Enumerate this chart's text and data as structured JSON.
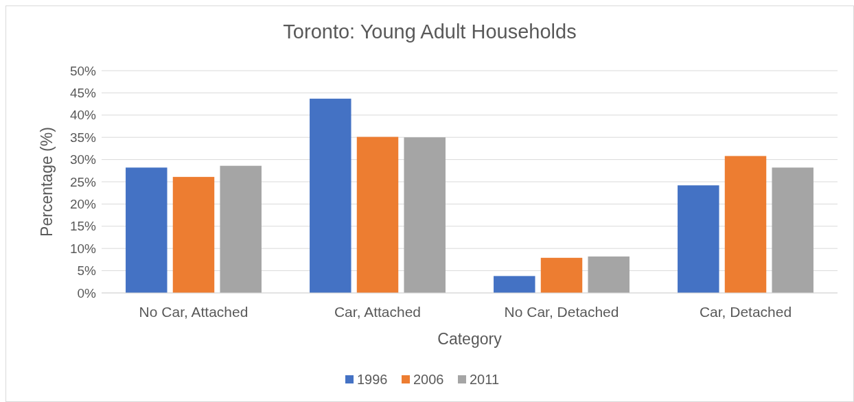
{
  "chart_data": {
    "type": "bar",
    "title": "Toronto: Young Adult Households",
    "xlabel": "Category",
    "ylabel": "Percentage (%)",
    "categories": [
      "No Car, Attached",
      "Car, Attached",
      "No Car, Detached",
      "Car, Detached"
    ],
    "series": [
      {
        "name": "1996",
        "color": "#4472c4",
        "values": [
          28.2,
          43.7,
          3.8,
          24.2
        ]
      },
      {
        "name": "2006",
        "color": "#ed7d31",
        "values": [
          26.1,
          35.1,
          7.9,
          30.8
        ]
      },
      {
        "name": "2011",
        "color": "#a5a5a5",
        "values": [
          28.6,
          35.0,
          8.2,
          28.2
        ]
      }
    ],
    "ylim": [
      0,
      50
    ],
    "yticks": [
      {
        "value": 0,
        "label": "0%"
      },
      {
        "value": 5,
        "label": "5%"
      },
      {
        "value": 10,
        "label": "10%"
      },
      {
        "value": 15,
        "label": "15%"
      },
      {
        "value": 20,
        "label": "20%"
      },
      {
        "value": 25,
        "label": "25%"
      },
      {
        "value": 30,
        "label": "30%"
      },
      {
        "value": 35,
        "label": "35%"
      },
      {
        "value": 40,
        "label": "40%"
      },
      {
        "value": 45,
        "label": "45%"
      },
      {
        "value": 50,
        "label": "50%"
      }
    ],
    "grid": "y",
    "legend": "bottom"
  }
}
